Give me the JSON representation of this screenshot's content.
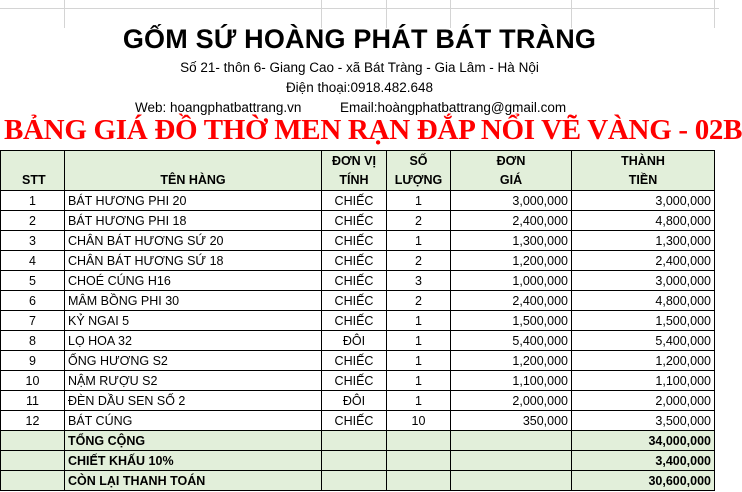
{
  "header": {
    "company": "GỐM SỨ HOÀNG PHÁT BÁT TRÀNG",
    "address": "Số 21- thôn 6- Giang Cao - xã Bát Tràng - Gia Lâm - Hà Nội",
    "phone": "Điện thoại:0918.482.648",
    "web": "Web: hoangphatbattrang.vn",
    "email": "Email:hoàngphatbattrang@gmail.com",
    "price_title": "BẢNG GIÁ ĐỒ THỜ MEN RẠN ĐẮP NỔI VẼ VÀNG - 02B"
  },
  "table": {
    "columns": [
      {
        "line1": "",
        "line2": "STT"
      },
      {
        "line1": "",
        "line2": "TÊN HÀNG"
      },
      {
        "line1": "ĐƠN VỊ",
        "line2": "TÍNH"
      },
      {
        "line1": "SỐ",
        "line2": "LƯỢNG"
      },
      {
        "line1": "ĐƠN",
        "line2": "GIÁ"
      },
      {
        "line1": "THÀNH",
        "line2": "TIỀN"
      }
    ],
    "rows": [
      {
        "stt": "1",
        "name": "BÁT HƯƠNG PHI 20",
        "unit": "CHIẾC",
        "qty": "1",
        "price": "3,000,000",
        "total": "3,000,000"
      },
      {
        "stt": "2",
        "name": "BÁT HƯƠNG PHI 18",
        "unit": "CHIẾC",
        "qty": "2",
        "price": "2,400,000",
        "total": "4,800,000"
      },
      {
        "stt": "3",
        "name": "CHÂN BÁT HƯƠNG SỨ 20",
        "unit": "CHIẾC",
        "qty": "1",
        "price": "1,300,000",
        "total": "1,300,000"
      },
      {
        "stt": "4",
        "name": "CHÂN BÁT HƯƠNG SỨ 18",
        "unit": "CHIẾC",
        "qty": "2",
        "price": "1,200,000",
        "total": "2,400,000"
      },
      {
        "stt": "5",
        "name": "CHOÉ CÚNG H16",
        "unit": "CHIẾC",
        "qty": "3",
        "price": "1,000,000",
        "total": "3,000,000"
      },
      {
        "stt": "6",
        "name": "MÂM BỒNG PHI 30",
        "unit": "CHIẾC",
        "qty": "2",
        "price": "2,400,000",
        "total": "4,800,000"
      },
      {
        "stt": "7",
        "name": "KỶ NGAI 5",
        "unit": "CHIẾC",
        "qty": "1",
        "price": "1,500,000",
        "total": "1,500,000"
      },
      {
        "stt": "8",
        "name": "LỌ HOA 32",
        "unit": "ĐÔI",
        "qty": "1",
        "price": "5,400,000",
        "total": "5,400,000"
      },
      {
        "stt": "9",
        "name": "ỐNG HƯƠNG S2",
        "unit": "CHIẾC",
        "qty": "1",
        "price": "1,200,000",
        "total": "1,200,000"
      },
      {
        "stt": "10",
        "name": "NẬM RƯỢU S2",
        "unit": "CHIẾC",
        "qty": "1",
        "price": "1,100,000",
        "total": "1,100,000"
      },
      {
        "stt": "11",
        "name": "ĐÈN DẦU SEN SỐ 2",
        "unit": "ĐÔI",
        "qty": "1",
        "price": "2,000,000",
        "total": "2,000,000"
      },
      {
        "stt": "12",
        "name": "BÁT CÚNG",
        "unit": "CHIẾC",
        "qty": "10",
        "price": "350,000",
        "total": "3,500,000"
      }
    ],
    "totals": [
      {
        "label": "TỔNG CỘNG",
        "value": "34,000,000"
      },
      {
        "label": "CHIẾT KHẤU 10%",
        "value": "3,400,000"
      },
      {
        "label": "CÒN LẠI THANH TOÁN",
        "value": "30,600,000"
      }
    ]
  },
  "colors": {
    "header_fill": "#e2efda",
    "title_red": "#ff0000"
  }
}
